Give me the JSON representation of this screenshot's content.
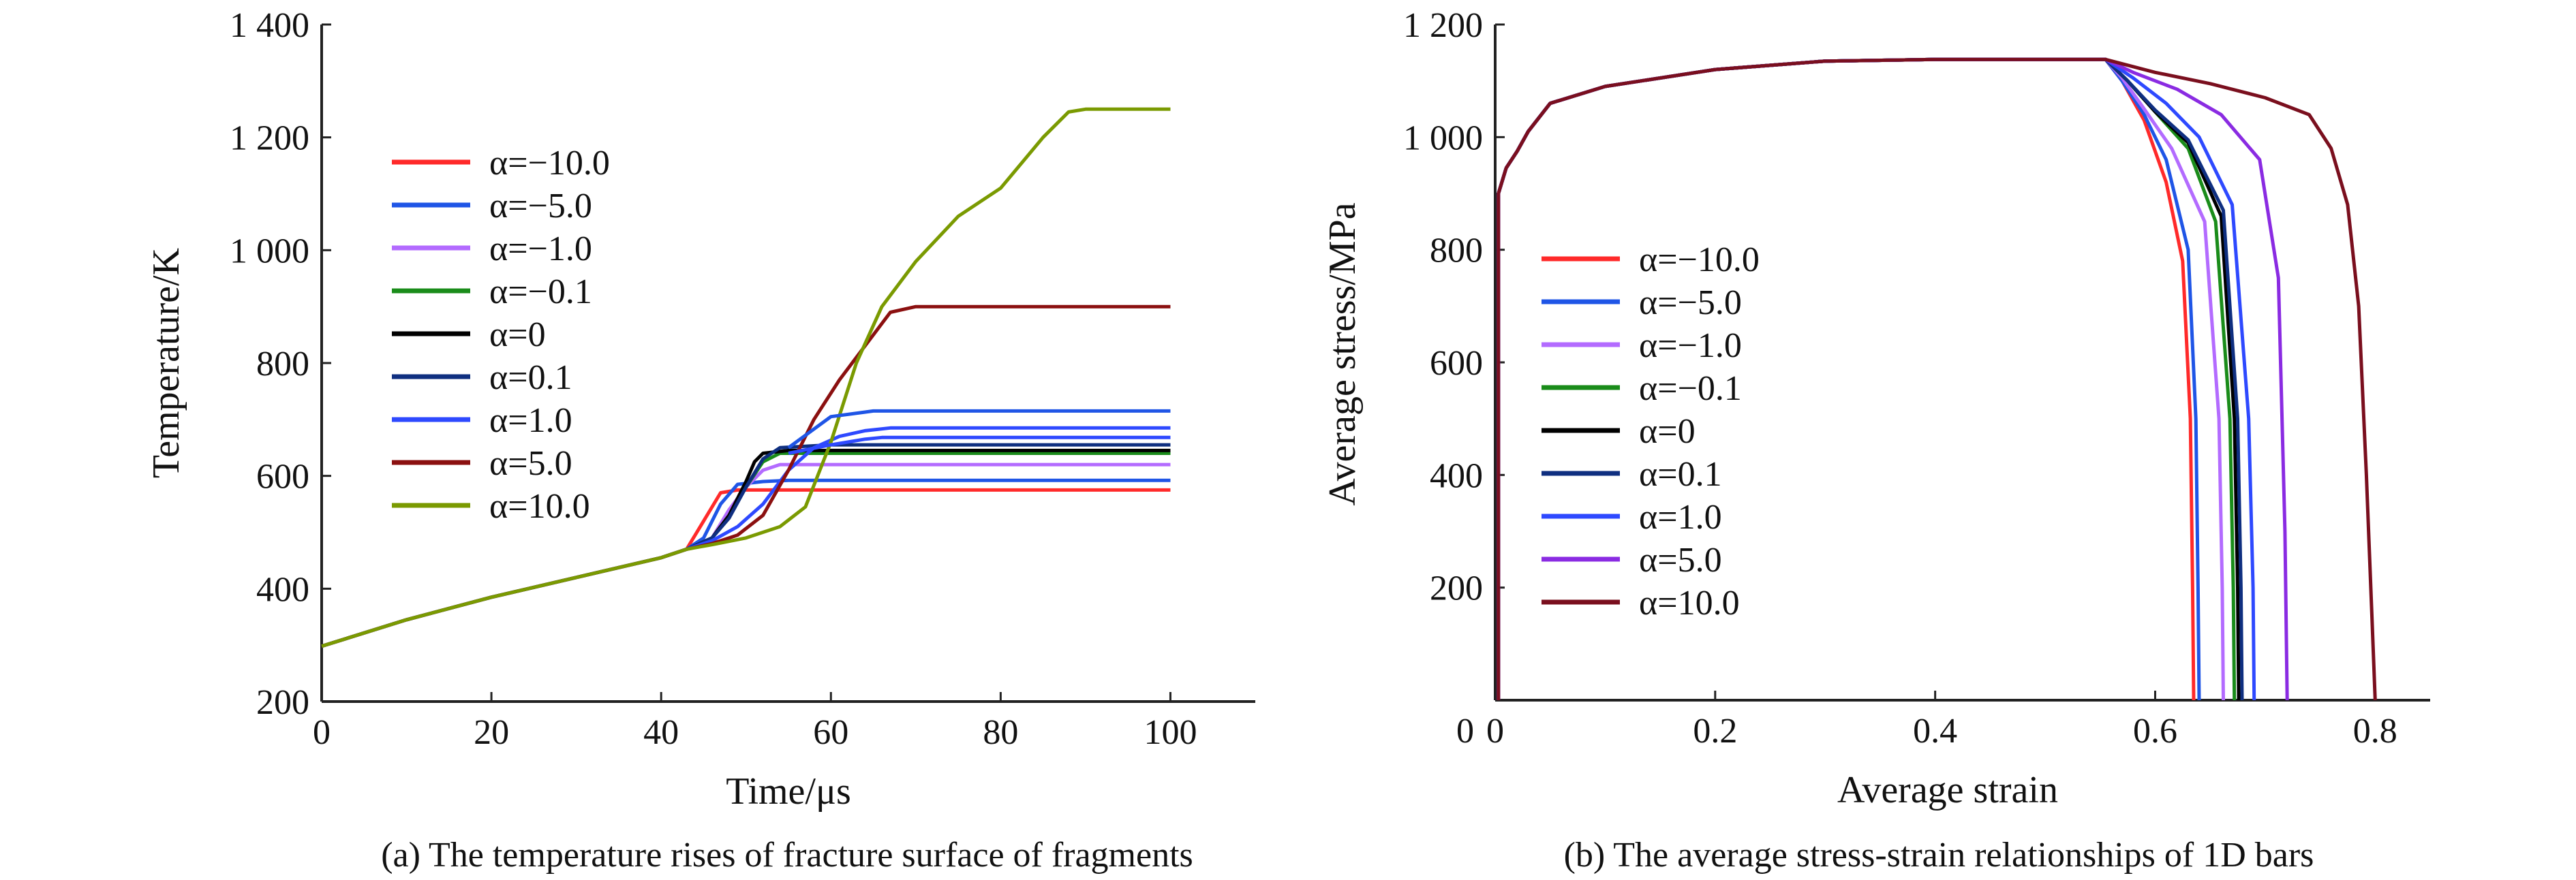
{
  "chart_data": [
    {
      "type": "line",
      "caption": "(a) The temperature rises of fracture surface of fragments",
      "xlabel": "Time/μs",
      "ylabel": "Temperature/K",
      "xlim": [
        0,
        110
      ],
      "ylim": [
        200,
        1400
      ],
      "xticks": [
        0,
        20,
        40,
        60,
        80,
        100
      ],
      "xtick_labels": [
        "0",
        "20",
        "40",
        "60",
        "80",
        "100"
      ],
      "yticks": [
        200,
        400,
        600,
        800,
        1000,
        1200,
        1400
      ],
      "ytick_labels": [
        "200",
        "400",
        "600",
        "800",
        "1 000",
        "1 200",
        "1 400"
      ],
      "legend_position": "upper-left",
      "series": [
        {
          "name": "α=−10.0",
          "color": "#ff2a2a",
          "x": [
            0,
            10,
            20,
            30,
            40,
            43,
            45,
            47,
            49,
            55,
            70,
            100
          ],
          "y": [
            298,
            345,
            385,
            420,
            455,
            470,
            520,
            570,
            575,
            575,
            575,
            575
          ]
        },
        {
          "name": "α=−5.0",
          "color": "#1f55e6",
          "x": [
            0,
            10,
            20,
            30,
            40,
            43,
            45,
            47,
            49,
            52,
            55,
            70,
            100
          ],
          "y": [
            298,
            345,
            385,
            420,
            455,
            470,
            490,
            550,
            585,
            590,
            592,
            592,
            592
          ]
        },
        {
          "name": "α=−1.0",
          "color": "#b36bff",
          "x": [
            0,
            10,
            20,
            30,
            40,
            43,
            46,
            48,
            50,
            52,
            54,
            60,
            70,
            100
          ],
          "y": [
            298,
            345,
            385,
            420,
            455,
            470,
            490,
            540,
            580,
            610,
            620,
            620,
            620,
            620
          ]
        },
        {
          "name": "α=−0.1",
          "color": "#1a8c1a",
          "x": [
            0,
            10,
            20,
            30,
            40,
            43,
            46,
            48,
            50,
            52,
            54,
            60,
            70,
            100
          ],
          "y": [
            298,
            345,
            385,
            420,
            455,
            470,
            490,
            530,
            580,
            625,
            640,
            640,
            640,
            640
          ]
        },
        {
          "name": "α=0",
          "color": "#000000",
          "x": [
            0,
            10,
            20,
            30,
            40,
            43,
            46,
            48,
            50,
            51,
            52,
            55,
            70,
            100
          ],
          "y": [
            298,
            345,
            385,
            420,
            455,
            470,
            490,
            530,
            590,
            625,
            640,
            645,
            645,
            645
          ]
        },
        {
          "name": "α=0.1",
          "color": "#0f2f80",
          "x": [
            0,
            10,
            20,
            30,
            40,
            43,
            46,
            48,
            50,
            52,
            54,
            60,
            70,
            100
          ],
          "y": [
            298,
            345,
            385,
            420,
            455,
            470,
            490,
            525,
            580,
            630,
            650,
            655,
            655,
            655
          ]
        },
        {
          "name": "α=1.0",
          "color": "#2e49ff",
          "x": [
            0,
            10,
            20,
            30,
            40,
            43,
            46,
            49,
            52,
            55,
            58,
            61,
            64,
            67,
            70,
            100
          ],
          "y": [
            298,
            345,
            385,
            420,
            455,
            470,
            485,
            510,
            550,
            610,
            650,
            670,
            680,
            685,
            685,
            685
          ]
        },
        {
          "name": "α=5.0",
          "color": "#8b1010",
          "x": [
            0,
            10,
            20,
            30,
            40,
            43,
            46,
            49,
            52,
            55,
            58,
            61,
            64,
            67,
            70,
            100
          ],
          "y": [
            298,
            345,
            385,
            420,
            455,
            470,
            480,
            495,
            530,
            610,
            700,
            770,
            830,
            890,
            900,
            900
          ]
        },
        {
          "name": "α=10.0",
          "color": "#7a9a01",
          "x": [
            0,
            10,
            20,
            30,
            40,
            43,
            46,
            50,
            54,
            57,
            60,
            63,
            66,
            70,
            75,
            80,
            85,
            88,
            90,
            100
          ],
          "y": [
            298,
            345,
            385,
            420,
            455,
            470,
            478,
            490,
            510,
            545,
            660,
            800,
            900,
            980,
            1060,
            1110,
            1200,
            1245,
            1250,
            1250
          ]
        },
        {
          "name": "",
          "color": "#1f55e6",
          "x": [
            55,
            60,
            65,
            67,
            100
          ],
          "y": [
            650,
            705,
            715,
            715,
            715
          ]
        },
        {
          "name": "",
          "color": "#2e49ff",
          "x": [
            55,
            60,
            64,
            66,
            100
          ],
          "y": [
            640,
            655,
            665,
            668,
            668
          ]
        }
      ]
    },
    {
      "type": "line",
      "caption": "(b) The average stress-strain relationships of 1D bars",
      "xlabel": "Average strain",
      "ylabel": "Average stress/MPa",
      "xlim": [
        0,
        0.85
      ],
      "ylim": [
        0,
        1200
      ],
      "xticks": [
        0,
        0.2,
        0.4,
        0.6,
        0.8
      ],
      "xtick_labels": [
        "0",
        "0.2",
        "0.4",
        "0.6",
        "0.8"
      ],
      "yticks": [
        200,
        400,
        600,
        800,
        1000,
        1200
      ],
      "ytick_labels": [
        "200",
        "400",
        "600",
        "800",
        "1 000",
        "1 200"
      ],
      "legend_position": "center-left",
      "series": [
        {
          "name": "α=−10.0",
          "color": "#ff2a2a",
          "x": [
            0.003,
            0.003,
            0.01,
            0.02,
            0.03,
            0.05,
            0.1,
            0.2,
            0.3,
            0.4,
            0.5,
            0.555,
            0.57,
            0.59,
            0.61,
            0.625,
            0.632,
            0.634,
            0.635
          ],
          "y": [
            0,
            900,
            945,
            975,
            1010,
            1060,
            1090,
            1120,
            1135,
            1138,
            1138,
            1138,
            1100,
            1030,
            920,
            780,
            500,
            200,
            0
          ]
        },
        {
          "name": "α=−5.0",
          "color": "#1f55e6",
          "x": [
            0.003,
            0.003,
            0.01,
            0.02,
            0.03,
            0.05,
            0.1,
            0.2,
            0.3,
            0.4,
            0.5,
            0.555,
            0.57,
            0.59,
            0.61,
            0.63,
            0.637,
            0.639,
            0.64
          ],
          "y": [
            0,
            900,
            945,
            975,
            1010,
            1060,
            1090,
            1120,
            1135,
            1138,
            1138,
            1138,
            1100,
            1040,
            960,
            800,
            500,
            200,
            0
          ]
        },
        {
          "name": "α=−1.0",
          "color": "#b36bff",
          "x": [
            0.003,
            0.003,
            0.01,
            0.02,
            0.03,
            0.05,
            0.1,
            0.2,
            0.3,
            0.4,
            0.5,
            0.555,
            0.57,
            0.59,
            0.615,
            0.645,
            0.658,
            0.661,
            0.662
          ],
          "y": [
            0,
            900,
            945,
            975,
            1010,
            1060,
            1090,
            1120,
            1135,
            1138,
            1138,
            1138,
            1105,
            1050,
            980,
            850,
            500,
            200,
            0
          ]
        },
        {
          "name": "α=−0.1",
          "color": "#1a8c1a",
          "x": [
            0.003,
            0.003,
            0.01,
            0.02,
            0.03,
            0.05,
            0.1,
            0.2,
            0.3,
            0.4,
            0.5,
            0.555,
            0.575,
            0.6,
            0.63,
            0.655,
            0.668,
            0.671,
            0.672
          ],
          "y": [
            0,
            900,
            945,
            975,
            1010,
            1060,
            1090,
            1120,
            1135,
            1138,
            1138,
            1138,
            1100,
            1045,
            980,
            850,
            500,
            200,
            0
          ]
        },
        {
          "name": "α=0",
          "color": "#000000",
          "x": [
            0.003,
            0.003,
            0.01,
            0.02,
            0.03,
            0.05,
            0.1,
            0.2,
            0.3,
            0.4,
            0.5,
            0.555,
            0.575,
            0.6,
            0.63,
            0.66,
            0.672,
            0.675,
            0.676
          ],
          "y": [
            0,
            900,
            945,
            975,
            1010,
            1060,
            1090,
            1120,
            1135,
            1138,
            1138,
            1138,
            1100,
            1045,
            990,
            860,
            500,
            200,
            0
          ]
        },
        {
          "name": "α=0.1",
          "color": "#0f2f80",
          "x": [
            0.003,
            0.003,
            0.01,
            0.02,
            0.03,
            0.05,
            0.1,
            0.2,
            0.3,
            0.4,
            0.5,
            0.555,
            0.575,
            0.6,
            0.63,
            0.662,
            0.675,
            0.678,
            0.679
          ],
          "y": [
            0,
            900,
            945,
            975,
            1010,
            1060,
            1090,
            1120,
            1135,
            1138,
            1138,
            1138,
            1100,
            1048,
            995,
            870,
            500,
            200,
            0
          ]
        },
        {
          "name": "α=1.0",
          "color": "#2e49ff",
          "x": [
            0.003,
            0.003,
            0.01,
            0.02,
            0.03,
            0.05,
            0.1,
            0.2,
            0.3,
            0.4,
            0.5,
            0.555,
            0.58,
            0.61,
            0.64,
            0.67,
            0.685,
            0.689,
            0.69
          ],
          "y": [
            0,
            900,
            945,
            975,
            1010,
            1060,
            1090,
            1120,
            1135,
            1138,
            1138,
            1138,
            1105,
            1060,
            1000,
            880,
            500,
            200,
            0
          ]
        },
        {
          "name": "α=5.0",
          "color": "#8a2be2",
          "x": [
            0.003,
            0.003,
            0.01,
            0.02,
            0.03,
            0.05,
            0.1,
            0.2,
            0.3,
            0.4,
            0.5,
            0.555,
            0.58,
            0.62,
            0.66,
            0.695,
            0.712,
            0.718,
            0.72
          ],
          "y": [
            0,
            900,
            945,
            975,
            1010,
            1060,
            1090,
            1120,
            1135,
            1138,
            1138,
            1138,
            1115,
            1085,
            1040,
            960,
            750,
            300,
            0
          ]
        },
        {
          "name": "α=10.0",
          "color": "#7a0f1e",
          "x": [
            0.003,
            0.003,
            0.01,
            0.02,
            0.03,
            0.05,
            0.1,
            0.2,
            0.3,
            0.4,
            0.5,
            0.555,
            0.6,
            0.65,
            0.7,
            0.74,
            0.76,
            0.775,
            0.785,
            0.792,
            0.797,
            0.8
          ],
          "y": [
            0,
            900,
            945,
            975,
            1010,
            1060,
            1090,
            1120,
            1135,
            1138,
            1138,
            1138,
            1115,
            1095,
            1070,
            1040,
            980,
            880,
            700,
            400,
            150,
            0
          ]
        }
      ]
    }
  ]
}
